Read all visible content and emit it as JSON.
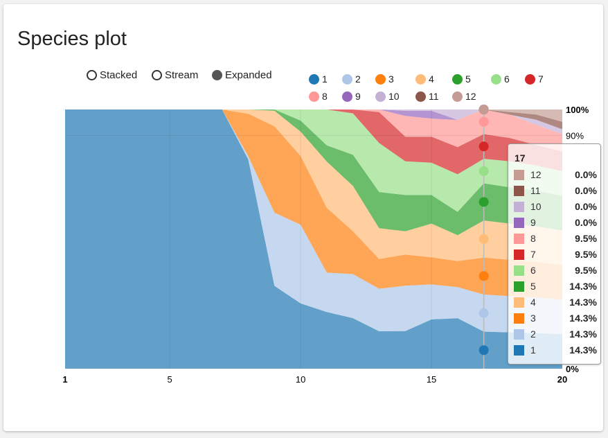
{
  "card": {
    "title": "Species plot"
  },
  "controls": [
    {
      "label": "Stacked",
      "selected": false
    },
    {
      "label": "Stream",
      "selected": false
    },
    {
      "label": "Expanded",
      "selected": true
    }
  ],
  "chart_data": {
    "type": "area",
    "stacking": "expanded",
    "title": "Species plot",
    "x": [
      1,
      2,
      3,
      4,
      5,
      6,
      7,
      8,
      9,
      10,
      11,
      12,
      13,
      14,
      15,
      16,
      17,
      18,
      19,
      20
    ],
    "xticks": [
      "1",
      "5",
      "10",
      "15",
      "20"
    ],
    "yticks": [
      "100%",
      "90%",
      "0%"
    ],
    "ylim": [
      0,
      1
    ],
    "legend_position": "top",
    "series": [
      {
        "name": "1",
        "color": "#1f77b4",
        "values": [
          1,
          1,
          1,
          1,
          1,
          1,
          1,
          0.985,
          0.345,
          0.295,
          0.245,
          0.195,
          0.145,
          0.145,
          0.19,
          0.195,
          0.143,
          0.14,
          0.14,
          0.14
        ]
      },
      {
        "name": "2",
        "color": "#aec7e8",
        "values": [
          0,
          0,
          0,
          0,
          0,
          0,
          0,
          0.015,
          0.305,
          0.355,
          0.17,
          0.17,
          0.165,
          0.175,
          0.135,
          0.12,
          0.143,
          0.14,
          0.14,
          0.14
        ]
      },
      {
        "name": "3",
        "color": "#ff7f0e",
        "values": [
          0,
          0,
          0,
          0,
          0,
          0,
          0,
          0.2,
          0.36,
          0.31,
          0.28,
          0.165,
          0.115,
          0.12,
          0.105,
          0.1,
          0.143,
          0.14,
          0.14,
          0.14
        ]
      },
      {
        "name": "4",
        "color": "#ffbb78",
        "values": [
          0,
          0,
          0,
          0,
          0,
          0,
          0,
          0.02,
          0.065,
          0.11,
          0.2,
          0.175,
          0.12,
          0.09,
          0.13,
          0.1,
          0.143,
          0.14,
          0.14,
          0.14
        ]
      },
      {
        "name": "5",
        "color": "#2ca02c",
        "values": [
          0,
          0,
          0,
          0,
          0,
          0,
          0,
          0,
          0.005,
          0.05,
          0.07,
          0.12,
          0.14,
          0.14,
          0.11,
          0.09,
          0.143,
          0.14,
          0.14,
          0.14
        ]
      },
      {
        "name": "6",
        "color": "#98df8a",
        "values": [
          0,
          0,
          0,
          0,
          0,
          0,
          0,
          0,
          0,
          0.05,
          0.155,
          0.16,
          0.19,
          0.13,
          0.125,
          0.145,
          0.095,
          0.1,
          0.1,
          0.1
        ]
      },
      {
        "name": "7",
        "color": "#d62728",
        "values": [
          0,
          0,
          0,
          0,
          0,
          0,
          0,
          0,
          0,
          0,
          0,
          0.015,
          0.12,
          0.095,
          0.1,
          0.105,
          0.095,
          0.09,
          0.08,
          0.08
        ]
      },
      {
        "name": "8",
        "color": "#ff9896",
        "values": [
          0,
          0,
          0,
          0,
          0,
          0,
          0,
          0,
          0,
          0,
          0,
          0,
          0.01,
          0.08,
          0.07,
          0.105,
          0.095,
          0.09,
          0.08,
          0.07
        ]
      },
      {
        "name": "9",
        "color": "#9467bd",
        "values": [
          0,
          0,
          0,
          0,
          0,
          0,
          0,
          0,
          0,
          0,
          0,
          0,
          0,
          0.02,
          0.03,
          0,
          0,
          0,
          0,
          0
        ]
      },
      {
        "name": "10",
        "color": "#c5b0d5",
        "values": [
          0,
          0,
          0,
          0,
          0,
          0,
          0,
          0,
          0,
          0,
          0,
          0,
          0,
          0.005,
          0.005,
          0.04,
          0,
          0,
          0.02,
          0.02
        ]
      },
      {
        "name": "11",
        "color": "#8c564b",
        "values": [
          0,
          0,
          0,
          0,
          0,
          0,
          0,
          0,
          0,
          0,
          0,
          0,
          0,
          0,
          0,
          0,
          0,
          0.01,
          0.02,
          0.03
        ]
      },
      {
        "name": "12",
        "color": "#c49c94",
        "values": [
          0,
          0,
          0,
          0,
          0,
          0,
          0,
          0,
          0,
          0,
          0,
          0,
          0,
          0,
          0,
          0,
          0,
          0.01,
          0.02,
          0.05
        ]
      }
    ],
    "tooltip": {
      "x_label": "17",
      "rows": [
        {
          "key": "12",
          "color": "#c49c94",
          "value": "0.0%"
        },
        {
          "key": "11",
          "color": "#8c564b",
          "value": "0.0%"
        },
        {
          "key": "10",
          "color": "#c5b0d5",
          "value": "0.0%"
        },
        {
          "key": "9",
          "color": "#9467bd",
          "value": "0.0%"
        },
        {
          "key": "8",
          "color": "#ff9896",
          "value": "9.5%"
        },
        {
          "key": "7",
          "color": "#d62728",
          "value": "9.5%"
        },
        {
          "key": "6",
          "color": "#98df8a",
          "value": "9.5%"
        },
        {
          "key": "5",
          "color": "#2ca02c",
          "value": "14.3%"
        },
        {
          "key": "4",
          "color": "#ffbb78",
          "value": "14.3%"
        },
        {
          "key": "3",
          "color": "#ff7f0e",
          "value": "14.3%"
        },
        {
          "key": "2",
          "color": "#aec7e8",
          "value": "14.3%"
        },
        {
          "key": "1",
          "color": "#1f77b4",
          "value": "14.3%"
        }
      ]
    }
  }
}
